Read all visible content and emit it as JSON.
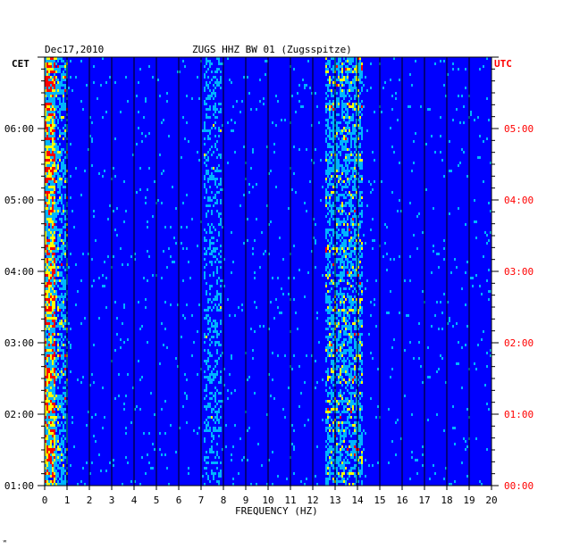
{
  "header": {
    "date": "Dec17,2010",
    "station": "ZUGS HHZ BW 01 (Zugsspitze)"
  },
  "chart_data": {
    "type": "heatmap",
    "title": "ZUGS HHZ BW 01 (Zugsspitze)",
    "subtitle": "Dec17,2010",
    "xlabel": "FREQUENCY (HZ)",
    "xlim": [
      0,
      20
    ],
    "x_ticks": [
      "0",
      "1",
      "2",
      "3",
      "4",
      "5",
      "6",
      "7",
      "8",
      "9",
      "10",
      "11",
      "12",
      "13",
      "14",
      "15",
      "16",
      "17",
      "18",
      "19",
      "20"
    ],
    "left_axis": {
      "label": "CET",
      "ticks": [
        "06:00",
        "05:00",
        "04:00",
        "03:00",
        "02:00",
        "01:00"
      ],
      "hours": [
        6,
        5,
        4,
        3,
        2,
        1
      ],
      "range_hours": [
        1,
        7
      ]
    },
    "right_axis": {
      "label": "UTC",
      "ticks": [
        "05:00",
        "04:00",
        "03:00",
        "02:00",
        "01:00",
        "00:00"
      ],
      "hours": [
        5,
        4,
        3,
        2,
        1,
        0
      ]
    },
    "colormap": [
      "#00007a",
      "#0000ff",
      "#00b4ff",
      "#ffff00",
      "#ff0000"
    ],
    "bands": [
      {
        "name": "low frequency",
        "range_hz": [
          0,
          1
        ],
        "intensity": "high"
      },
      {
        "name": "7-8 Hz line",
        "range_hz": [
          7.1,
          7.9
        ],
        "intensity": "medium"
      },
      {
        "name": "12.5-14 Hz band",
        "range_hz": [
          12.6,
          14.2
        ],
        "intensity": "high"
      }
    ],
    "grid": true
  },
  "colors": {
    "axis_text": "#000000",
    "utc_text": "#ff0000",
    "grid": "#000000",
    "background": "#ffffff"
  }
}
